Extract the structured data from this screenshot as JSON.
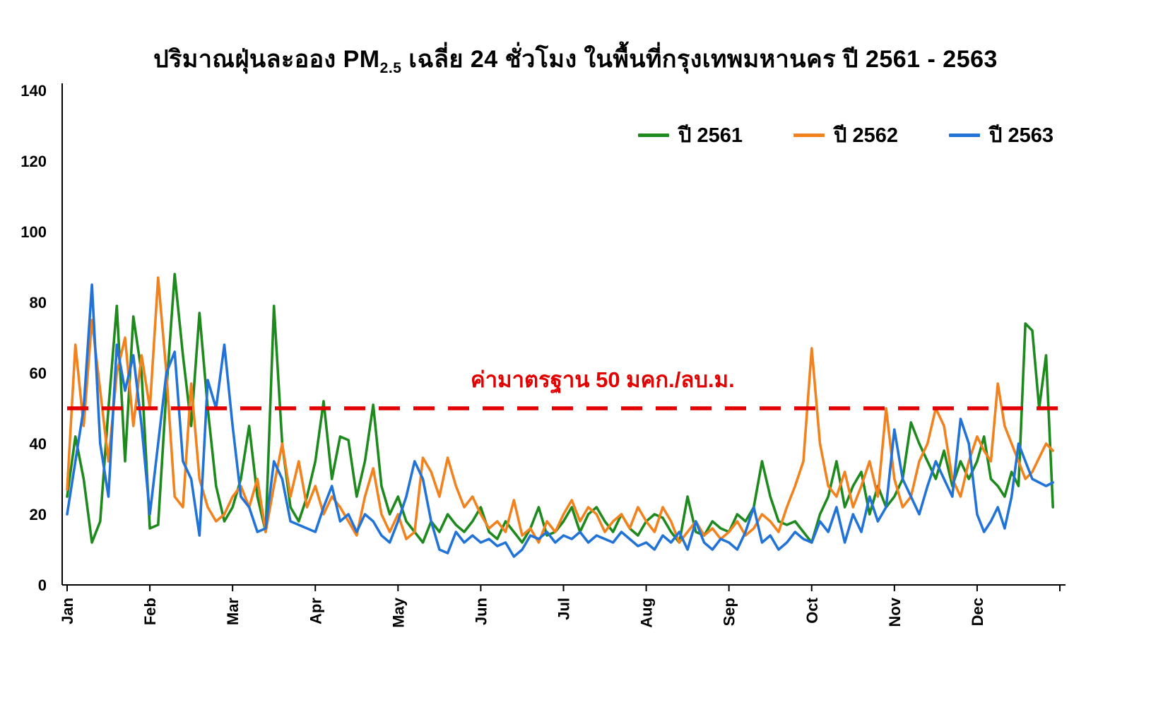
{
  "title": {
    "prefix": "ปริมาณฝุ่นละออง PM",
    "subscript": "2.5",
    "suffix": " เฉลี่ย 24 ชั่วโมง ในพื้นที่กรุงเทพมหานคร ปี 2561 - 2563",
    "full": "ปริมาณฝุ่นละออง PM2.5 เฉลี่ย 24 ชั่วโมง ในพื้นที่กรุงเทพมหานคร ปี 2561 - 2563"
  },
  "standard_line": {
    "label": "ค่ามาตรฐาน 50 มคก./ลบ.ม.",
    "value": 50,
    "color": "#e30000"
  },
  "chart_data": {
    "type": "line",
    "title": "ปริมาณฝุ่นละออง PM2.5 เฉลี่ย 24 ชั่วโมง ในพื้นที่กรุงเทพมหานคร ปี 2561 - 2563",
    "xlabel": "",
    "ylabel": "",
    "ylim": [
      0,
      140
    ],
    "yticks": [
      0,
      20,
      40,
      60,
      80,
      100,
      120,
      140
    ],
    "grid": false,
    "legend_position": "top-right",
    "categories_x": [
      "Jan",
      "Feb",
      "Mar",
      "Apr",
      "May",
      "Jun",
      "Jul",
      "Aug",
      "Sep",
      "Oct",
      "Nov",
      "Dec"
    ],
    "points_per_month": [
      10,
      10,
      10,
      10,
      10,
      10,
      10,
      10,
      10,
      10,
      10,
      12
    ],
    "x_unit": "daily PM2.5 values sampled approx. every 3 days (estimated from plot)",
    "reference_line": {
      "value": 50,
      "label": "ค่ามาตรฐาน 50 มคก./ลบ.ม.",
      "style": "dashed",
      "color": "#e30000"
    },
    "series": [
      {
        "name": "ปี 2561",
        "key": "2561",
        "color": "#1e8a1e",
        "values": [
          25,
          42,
          30,
          12,
          18,
          50,
          79,
          35,
          76,
          60,
          16,
          17,
          55,
          88,
          65,
          45,
          77,
          50,
          28,
          18,
          22,
          30,
          45,
          25,
          15,
          79,
          40,
          22,
          18,
          25,
          35,
          52,
          30,
          42,
          41,
          25,
          35,
          51,
          28,
          20,
          25,
          18,
          15,
          12,
          18,
          15,
          20,
          17,
          15,
          18,
          22,
          15,
          13,
          18,
          15,
          12,
          16,
          22,
          14,
          15,
          18,
          22,
          15,
          20,
          22,
          18,
          15,
          20,
          16,
          14,
          18,
          20,
          19,
          15,
          12,
          25,
          15,
          14,
          18,
          16,
          15,
          20,
          18,
          22,
          35,
          25,
          18,
          17,
          18,
          15,
          12,
          20,
          25,
          35,
          22,
          28,
          32,
          20,
          28,
          22,
          25,
          30,
          46,
          40,
          35,
          30,
          38,
          28,
          35,
          30,
          35,
          42,
          30,
          28,
          25,
          32,
          28,
          74,
          72,
          50,
          65,
          22
        ]
      },
      {
        "name": "ปี 2562",
        "key": "2562",
        "color": "#f1821e",
        "values": [
          27,
          68,
          45,
          75,
          55,
          35,
          60,
          70,
          45,
          65,
          50,
          87,
          60,
          25,
          22,
          57,
          30,
          22,
          18,
          20,
          25,
          28,
          22,
          30,
          15,
          28,
          40,
          25,
          35,
          22,
          28,
          20,
          25,
          22,
          18,
          14,
          25,
          33,
          20,
          15,
          20,
          13,
          15,
          36,
          32,
          25,
          36,
          28,
          22,
          25,
          20,
          16,
          18,
          15,
          24,
          14,
          16,
          12,
          18,
          15,
          20,
          24,
          18,
          22,
          20,
          15,
          18,
          20,
          16,
          22,
          18,
          15,
          22,
          18,
          12,
          15,
          18,
          14,
          16,
          13,
          15,
          18,
          14,
          16,
          20,
          18,
          15,
          22,
          28,
          35,
          67,
          40,
          28,
          25,
          32,
          22,
          28,
          35,
          25,
          50,
          30,
          22,
          25,
          35,
          40,
          50,
          45,
          30,
          25,
          35,
          42,
          38,
          35,
          57,
          45,
          40,
          35,
          30,
          32,
          36,
          40,
          38
        ]
      },
      {
        "name": "ปี 2563",
        "key": "2563",
        "color": "#2273d8",
        "values": [
          20,
          35,
          50,
          85,
          40,
          25,
          68,
          55,
          65,
          45,
          20,
          40,
          60,
          66,
          35,
          30,
          14,
          58,
          50,
          68,
          45,
          25,
          22,
          15,
          16,
          35,
          30,
          18,
          17,
          16,
          15,
          22,
          28,
          18,
          20,
          15,
          20,
          18,
          14,
          12,
          18,
          25,
          35,
          30,
          18,
          10,
          9,
          15,
          12,
          14,
          12,
          13,
          11,
          12,
          8,
          10,
          14,
          13,
          15,
          12,
          14,
          13,
          15,
          12,
          14,
          13,
          12,
          15,
          13,
          11,
          12,
          10,
          14,
          12,
          15,
          10,
          18,
          12,
          10,
          13,
          12,
          10,
          15,
          22,
          12,
          14,
          10,
          12,
          15,
          13,
          12,
          18,
          15,
          22,
          12,
          20,
          15,
          25,
          18,
          22,
          44,
          30,
          25,
          20,
          28,
          35,
          30,
          25,
          47,
          40,
          20,
          15,
          18,
          22,
          16,
          25,
          40,
          35,
          30,
          29,
          28,
          29
        ]
      }
    ]
  }
}
